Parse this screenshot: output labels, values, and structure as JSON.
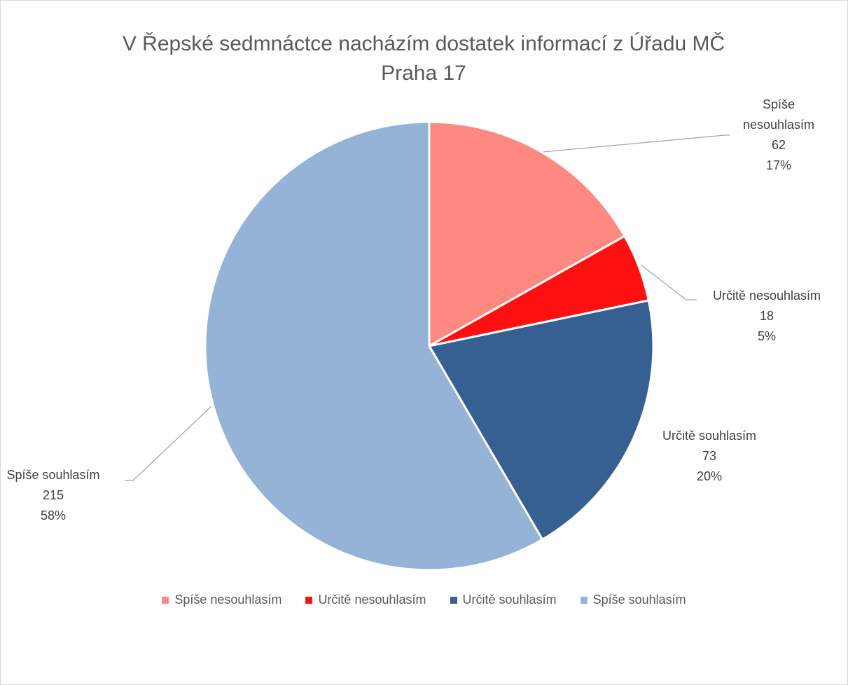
{
  "chart_data": {
    "type": "pie",
    "title": "V Řepské sedmnáctce nacházím dostatek informací z Úřadu MČ Praha 17",
    "categories": [
      "Spíše nesouhlasím",
      "Určitě nesouhlasím",
      "Určitě souhlasím",
      "Spíše souhlasím"
    ],
    "values": [
      62,
      18,
      73,
      215
    ],
    "percent_labels": [
      "17%",
      "5%",
      "20%",
      "58%"
    ],
    "colors": [
      "#ff8880",
      "#ff1010",
      "#376092",
      "#95b3d7"
    ],
    "legend": "bottom"
  }
}
